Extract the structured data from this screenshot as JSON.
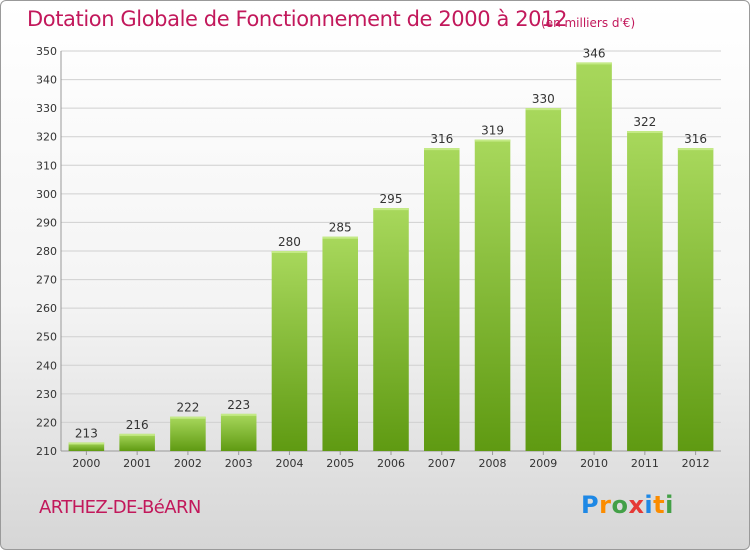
{
  "header": {
    "title": "Dotation Globale de Fonctionnement de 2000 à 2012",
    "subtitle": "(en milliers d'€)"
  },
  "footer": {
    "commune": "ARTHEZ-DE-BéARN",
    "logo": "Proxiti"
  },
  "colors": {
    "title": "#c2185b",
    "bar_light": "#a8d85c",
    "bar_dark": "#5f9a12",
    "grid": "#d0d0d0"
  },
  "chart_data": {
    "type": "bar",
    "title": "Dotation Globale de Fonctionnement de 2000 à 2012",
    "subtitle": "(en milliers d'€)",
    "categories": [
      "2000",
      "2001",
      "2002",
      "2003",
      "2004",
      "2005",
      "2006",
      "2007",
      "2008",
      "2009",
      "2010",
      "2011",
      "2012"
    ],
    "values": [
      213,
      216,
      222,
      223,
      280,
      285,
      295,
      316,
      319,
      330,
      346,
      322,
      316
    ],
    "ylim": [
      210,
      350
    ],
    "yticks": [
      210,
      220,
      230,
      240,
      250,
      260,
      270,
      280,
      290,
      300,
      310,
      320,
      330,
      340,
      350
    ],
    "grid": true,
    "data_labels": true
  }
}
